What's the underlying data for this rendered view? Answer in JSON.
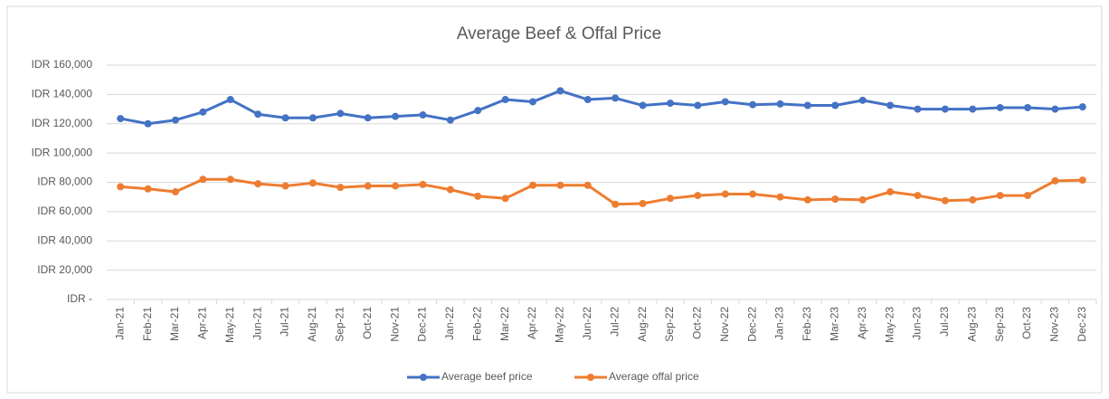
{
  "chart_data": {
    "type": "line",
    "title": "Average Beef & Offal Price",
    "categories": [
      "Jan-21",
      "Feb-21",
      "Mar-21",
      "Apr-21",
      "May-21",
      "Jun-21",
      "Jul-21",
      "Aug-21",
      "Sep-21",
      "Oct-21",
      "Nov-21",
      "Dec-21",
      "Jan-22",
      "Feb-22",
      "Mar-22",
      "Apr-22",
      "May-22",
      "Jun-22",
      "Jul-22",
      "Aug-22",
      "Sep-22",
      "Oct-22",
      "Nov-22",
      "Dec-22",
      "Jan-23",
      "Feb-23",
      "Mar-23",
      "Apr-23",
      "May-23",
      "Jun-23",
      "Jul-23",
      "Aug-23",
      "Sep-23",
      "Oct-23",
      "Nov-23",
      "Dec-23"
    ],
    "series": [
      {
        "name": "Average beef price",
        "color": "#4472c4",
        "values": [
          123500,
          120000,
          122500,
          128000,
          136500,
          126500,
          124000,
          124000,
          127000,
          124000,
          125000,
          126000,
          122500,
          129000,
          136500,
          135000,
          142500,
          136500,
          137500,
          132500,
          134000,
          132500,
          135000,
          133000,
          133500,
          132500,
          132500,
          136000,
          132500,
          130000,
          130000,
          130000,
          131000,
          131000,
          130000,
          131500
        ]
      },
      {
        "name": "Average offal price",
        "color": "#ed7d31",
        "values": [
          77000,
          75500,
          73500,
          82000,
          82000,
          79000,
          77500,
          79500,
          76500,
          77500,
          77500,
          78500,
          75000,
          70500,
          69000,
          78000,
          78000,
          78000,
          65000,
          65500,
          69000,
          71000,
          72000,
          72000,
          70000,
          68000,
          68500,
          68000,
          73500,
          71000,
          67500,
          68000,
          71000,
          71000,
          81000,
          81500
        ]
      }
    ],
    "ylim": [
      0,
      160000
    ],
    "yticks": [
      {
        "value": 0,
        "label": "IDR -"
      },
      {
        "value": 20000,
        "label": "IDR 20,000"
      },
      {
        "value": 40000,
        "label": "IDR 40,000"
      },
      {
        "value": 60000,
        "label": "IDR 60,000"
      },
      {
        "value": 80000,
        "label": "IDR 80,000"
      },
      {
        "value": 100000,
        "label": "IDR 100,000"
      },
      {
        "value": 120000,
        "label": "IDR 120,000"
      },
      {
        "value": 140000,
        "label": "IDR 140,000"
      },
      {
        "value": 160000,
        "label": "IDR 160,000"
      }
    ],
    "grid": true,
    "legend": "bottom"
  }
}
